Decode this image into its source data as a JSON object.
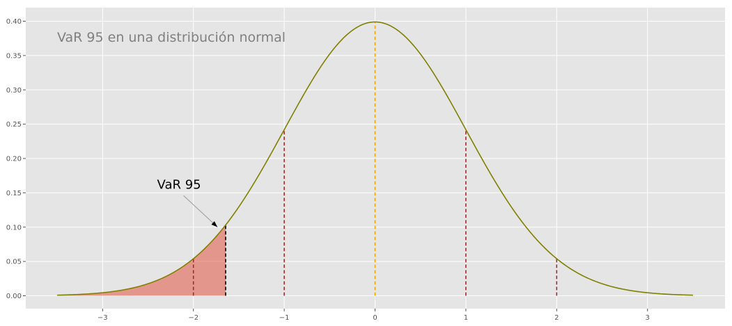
{
  "chart_data": {
    "type": "line",
    "title": "VaR 95 en una distribución normal",
    "xlabel": "",
    "ylabel": "",
    "xlim": [
      -3.5,
      3.5
    ],
    "ylim": [
      0.0,
      0.4
    ],
    "grid": true,
    "style": "ggplot",
    "x_ticks": [
      -3,
      -2,
      -1,
      0,
      1,
      2,
      3
    ],
    "x_tick_labels": [
      "−3",
      "−2",
      "−1",
      "0",
      "1",
      "2",
      "3"
    ],
    "y_ticks": [
      0.0,
      0.05,
      0.1,
      0.15,
      0.2,
      0.25,
      0.3,
      0.35,
      0.4
    ],
    "y_tick_labels": [
      "0.00",
      "0.05",
      "0.10",
      "0.15",
      "0.20",
      "0.25",
      "0.30",
      "0.35",
      "0.40"
    ],
    "curve": {
      "function": "standard normal pdf",
      "mean": 0,
      "std": 1,
      "color": "#808000"
    },
    "shaded_region": {
      "x_from": -3.5,
      "x_to": -1.645,
      "color": "#e24a33",
      "alpha": 0.5
    },
    "vertical_lines": [
      {
        "x": -2,
        "color": "#a52a2a",
        "style": "dashed"
      },
      {
        "x": -1,
        "color": "#a52a2a",
        "style": "dashed"
      },
      {
        "x": 0,
        "color": "#ffa500",
        "style": "dashed"
      },
      {
        "x": 1,
        "color": "#a52a2a",
        "style": "dashed"
      },
      {
        "x": 2,
        "color": "#a52a2a",
        "style": "dashed"
      },
      {
        "x": -1.645,
        "color": "#000000",
        "style": "dashed"
      }
    ],
    "annotation": {
      "text": "VaR 95",
      "text_x": -2.4,
      "text_y": 0.15,
      "arrow_x": -1.735,
      "arrow_y": 0.1
    },
    "background_color": "#e5e5e5",
    "grid_color": "#ffffff"
  }
}
